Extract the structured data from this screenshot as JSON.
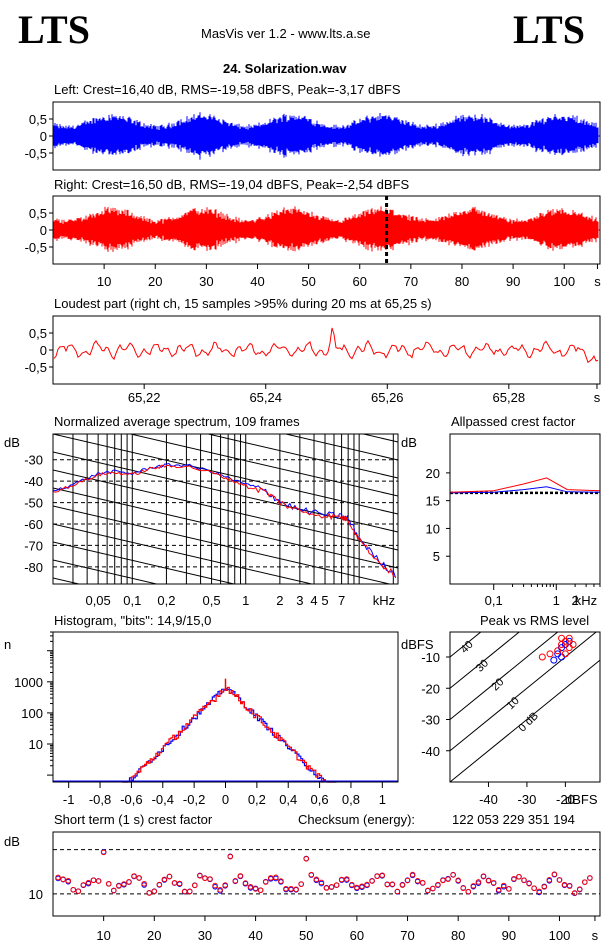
{
  "header": {
    "logo_left": "LTS",
    "logo_right": "LTS",
    "app_title": "MasVis ver 1.2 - www.lts.a.se",
    "file_name": "24. Solarization.wav"
  },
  "colors": {
    "left": "#0000ff",
    "right": "#ff0000",
    "axis": "#000000"
  },
  "chart_data": [
    {
      "type": "area",
      "title": "Left: Crest=16,40 dB, RMS=-19,58 dBFS, Peak=-3,17 dBFS",
      "channel": "left",
      "yticks": [
        "0,5",
        "0",
        "-0,5"
      ],
      "ylim": [
        -1,
        1
      ],
      "xlim": [
        0,
        107
      ],
      "peak_dbfs": -3.17
    },
    {
      "type": "area",
      "title": "Right: Crest=16,50 dB, RMS=-19,04 dBFS, Peak=-2,54 dBFS",
      "channel": "right",
      "yticks": [
        "0,5",
        "0",
        "-0,5"
      ],
      "ylim": [
        -1,
        1
      ],
      "xlim": [
        0,
        107
      ],
      "marker_x": 65.25,
      "xticks": [
        "10",
        "20",
        "30",
        "40",
        "50",
        "60",
        "70",
        "80",
        "90",
        "100",
        "s"
      ]
    },
    {
      "type": "line",
      "title": "Loudest part (right ch, 15 samples >95% during 20 ms at 65,25 s)",
      "yticks": [
        "0,5",
        "0",
        "-0,5"
      ],
      "ylim": [
        -1,
        1
      ],
      "xlim": [
        65.205,
        65.295
      ],
      "xticks": [
        "65,22",
        "65,24",
        "65,26",
        "65,28",
        "s"
      ],
      "peak": {
        "x": 65.251,
        "y": 0.78
      }
    },
    {
      "type": "line",
      "title": "Normalized average spectrum, 109 frames",
      "ylabel": "dB",
      "yticks": [
        "-30",
        "-40",
        "-50",
        "-60",
        "-70",
        "-80"
      ],
      "xticks": [
        "0,05",
        "0,1",
        "0,2",
        "0,5",
        "1",
        "2",
        "3",
        "4",
        "5",
        "7",
        "kHz"
      ],
      "xlim": [
        0.02,
        22
      ],
      "ylim": [
        -88,
        -18
      ],
      "points": [
        [
          0.02,
          -45
        ],
        [
          0.03,
          -42
        ],
        [
          0.05,
          -37
        ],
        [
          0.07,
          -36
        ],
        [
          0.1,
          -37
        ],
        [
          0.15,
          -34
        ],
        [
          0.2,
          -33
        ],
        [
          0.3,
          -33
        ],
        [
          0.5,
          -36
        ],
        [
          0.7,
          -39
        ],
        [
          1,
          -42
        ],
        [
          1.5,
          -45
        ],
        [
          2,
          -50
        ],
        [
          3,
          -54
        ],
        [
          5,
          -56
        ],
        [
          7,
          -57
        ],
        [
          8,
          -58
        ],
        [
          10,
          -67
        ],
        [
          15,
          -78
        ],
        [
          22,
          -85
        ]
      ]
    },
    {
      "type": "line",
      "title": "Allpassed crest factor",
      "ylabel": "dB",
      "yticks": [
        "20",
        "15",
        "10",
        "5"
      ],
      "xticks": [
        "0,1",
        "1",
        "2",
        "kHz"
      ],
      "xlim": [
        0.02,
        5
      ],
      "ylim": [
        0,
        27
      ],
      "reference_db": 16.4,
      "series": [
        {
          "channel": "left",
          "x": [
            0.02,
            0.1,
            0.3,
            0.7,
            1.5,
            5
          ],
          "values": [
            16.4,
            16.5,
            17.0,
            17.5,
            16.6,
            16.5
          ]
        },
        {
          "channel": "right",
          "x": [
            0.02,
            0.1,
            0.3,
            0.7,
            1.5,
            5
          ],
          "values": [
            16.5,
            16.8,
            18.0,
            19.1,
            17.0,
            16.8
          ]
        }
      ]
    },
    {
      "type": "bar",
      "title": "Histogram, \"bits\": 14,9/15,0",
      "ylabel": "n",
      "yticks": [
        "1000",
        "100",
        "10"
      ],
      "xticks": [
        "-1",
        "-0,8",
        "-0,6",
        "-0,4",
        "-0,2",
        "0",
        "0,2",
        "0,4",
        "0,6",
        "0,8",
        "1"
      ],
      "xlim": [
        -1.1,
        1.1
      ],
      "ylim": [
        0.6,
        40000
      ],
      "log_y": true,
      "peak_count": 700
    },
    {
      "type": "scatter",
      "title": "Peak vs RMS level",
      "ylabel": "dBFS",
      "xlabel": "dBFS",
      "yticks": [
        "-10",
        "-20",
        "-30",
        "-40"
      ],
      "xticks": [
        "-40",
        "-30",
        "-20"
      ],
      "diagonal_labels": [
        "40",
        "30",
        "20",
        "10",
        "0 dB"
      ],
      "xlim": [
        -50,
        -11
      ],
      "ylim": [
        -50,
        -2
      ],
      "series": [
        {
          "channel": "left",
          "points": [
            [
              -22,
              -9
            ],
            [
              -21,
              -7
            ],
            [
              -20,
              -6
            ],
            [
              -19,
              -5
            ],
            [
              -21,
              -10
            ],
            [
              -23,
              -11
            ]
          ]
        },
        {
          "channel": "right",
          "points": [
            [
              -22,
              -8
            ],
            [
              -21,
              -6
            ],
            [
              -20,
              -5
            ],
            [
              -19,
              -4
            ],
            [
              -18,
              -6
            ],
            [
              -20,
              -9
            ],
            [
              -24,
              -9
            ],
            [
              -26,
              -10
            ],
            [
              -19,
              -7
            ],
            [
              -21,
              -4
            ]
          ]
        }
      ]
    },
    {
      "type": "scatter",
      "title": "Short term (1 s) crest factor",
      "ylabel": "dB",
      "yticks": [
        "10"
      ],
      "xticks": [
        "10",
        "20",
        "30",
        "40",
        "50",
        "60",
        "70",
        "80",
        "90",
        "100",
        "s"
      ],
      "xlim": [
        0,
        108
      ],
      "ylim": [
        5,
        24
      ],
      "reference_lines": [
        10,
        20
      ],
      "checksum_label": "Checksum (energy):",
      "checksum_value": "122 053 229 351 194",
      "highlights": [
        [
          10,
          19.5
        ],
        [
          35,
          18.5
        ],
        [
          50,
          18.0
        ]
      ]
    }
  ]
}
